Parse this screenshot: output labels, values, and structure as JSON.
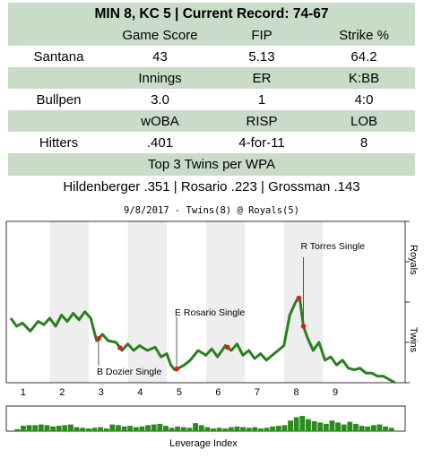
{
  "header": {
    "title": "MIN 8, KC 5 | Current Record: 74-67"
  },
  "table": {
    "pitching_header": [
      "",
      "Game Score",
      "FIP",
      "Strike %"
    ],
    "santana": [
      "Santana",
      "43",
      "5.13",
      "64.2"
    ],
    "bullpen_header": [
      "",
      "Innings",
      "ER",
      "K:BB"
    ],
    "bullpen": [
      "Bullpen",
      "3.0",
      "1",
      "4:0"
    ],
    "hitting_header": [
      "",
      "wOBA",
      "RISP",
      "LOB"
    ],
    "hitters": [
      "Hitters",
      ".401",
      "4-for-11",
      "8"
    ],
    "wpa_header": "Top 3 Twins per WPA",
    "wpa_leaders": "Hildenberger .351 | Rosario .223 | Grossman .143"
  },
  "chart_data": {
    "type": "line",
    "title": "9/8/2017 - Twins(8) @ Royals(5)",
    "xlabel": "Leverage Index",
    "right_axis_labels": [
      "Royals",
      "Twins"
    ],
    "innings": [
      "1",
      "2",
      "3",
      "4",
      "5",
      "6",
      "7",
      "8",
      "9"
    ],
    "ylim": [
      -0.5,
      0.5
    ],
    "series": [
      {
        "x": [
          0.0,
          0.15,
          0.3,
          0.5,
          0.7,
          0.85,
          1.0,
          1.15,
          1.3,
          1.45,
          1.6,
          1.75,
          1.9,
          2.05,
          2.2,
          2.35,
          2.5,
          2.7,
          2.85,
          3.0,
          3.15,
          3.3,
          3.5,
          3.7,
          3.85,
          4.0,
          4.1,
          4.2,
          4.3,
          4.45,
          4.6,
          4.8,
          5.0,
          5.15,
          5.3,
          5.5,
          5.65,
          5.8,
          5.95,
          6.1,
          6.25,
          6.4,
          6.55,
          6.7,
          6.85,
          7.0,
          7.15,
          7.3,
          7.4,
          7.5,
          7.6,
          7.75,
          7.9,
          8.05,
          8.2,
          8.35,
          8.5,
          8.65,
          8.8,
          8.95,
          9.1,
          9.25,
          9.4,
          9.55,
          9.7,
          9.85
        ],
        "y": [
          -0.1,
          -0.15,
          -0.13,
          -0.18,
          -0.12,
          -0.14,
          -0.1,
          -0.15,
          -0.08,
          -0.12,
          -0.07,
          -0.11,
          -0.06,
          -0.1,
          -0.24,
          -0.2,
          -0.24,
          -0.25,
          -0.3,
          -0.26,
          -0.3,
          -0.27,
          -0.3,
          -0.28,
          -0.34,
          -0.32,
          -0.39,
          -0.42,
          -0.41,
          -0.39,
          -0.36,
          -0.3,
          -0.33,
          -0.29,
          -0.34,
          -0.27,
          -0.3,
          -0.26,
          -0.33,
          -0.3,
          -0.35,
          -0.32,
          -0.36,
          -0.33,
          -0.3,
          -0.27,
          -0.08,
          0.0,
          0.03,
          -0.15,
          -0.22,
          -0.3,
          -0.25,
          -0.36,
          -0.34,
          -0.39,
          -0.36,
          -0.41,
          -0.42,
          -0.41,
          -0.44,
          -0.44,
          -0.46,
          -0.46,
          -0.48,
          -0.5
        ]
      }
    ],
    "key_plays_x": [
      2.25,
      2.8,
      4.25,
      5.55,
      7.38,
      7.5
    ],
    "annotations": [
      {
        "label": "B Dozier Single",
        "x": 2.25
      },
      {
        "label": "E Rosario Single",
        "x": 4.25
      },
      {
        "label": "R Torres Single",
        "x": 7.5
      }
    ],
    "leverage_index": [
      0.3,
      0.8,
      0.9,
      0.9,
      1.0,
      0.9,
      0.7,
      0.8,
      0.9,
      1.0,
      0.6,
      0.5,
      0.4,
      0.5,
      0.6,
      0.4,
      1.0,
      0.9,
      0.7,
      0.8,
      0.6,
      0.7,
      0.9,
      1.0,
      1.1,
      0.8,
      0.5,
      0.7,
      0.6,
      0.5,
      1.2,
      0.9,
      0.6,
      0.4,
      0.5,
      0.4,
      0.6,
      0.7,
      0.6,
      0.5,
      0.6,
      0.4,
      0.5,
      0.7,
      0.8,
      0.9,
      1.6,
      2.1,
      2.3,
      1.8,
      1.5,
      1.3,
      1.1,
      1.6,
      1.3,
      1.0,
      1.4,
      1.1,
      0.8,
      0.7,
      0.9,
      1.0,
      0.7,
      0.5
    ],
    "colors": {
      "band": "#c8dcc8",
      "line": "#2a7f1f",
      "dot": "#e41a1c",
      "stripe": "#eeeeee",
      "bar": "#2a8c1a"
    }
  }
}
